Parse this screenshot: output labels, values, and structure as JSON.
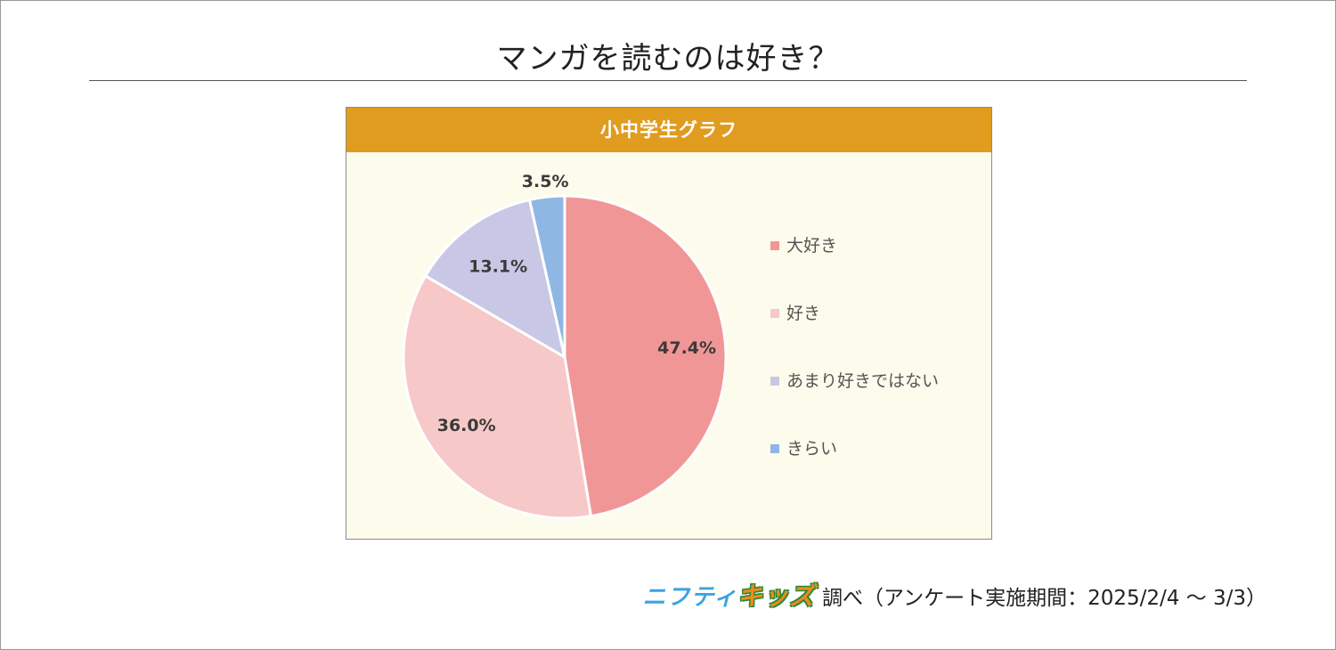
{
  "page_title": "マンガを読むのは好き？",
  "footer": {
    "brand_nifty": "ニフティ",
    "brand_kids": "キッズ",
    "note": "調べ（アンケート実施期間：2025/2/4 ～ 3/3）"
  },
  "chart_data": {
    "type": "pie",
    "title": "小中学生グラフ",
    "slices": [
      {
        "label": "大好き",
        "value": 47.4,
        "display": "47.4%",
        "color": "#f19697"
      },
      {
        "label": "好き",
        "value": 36.0,
        "display": "36.0%",
        "color": "#f7c8c8"
      },
      {
        "label": "あまり好きではない",
        "value": 13.1,
        "display": "13.1%",
        "color": "#c8c8e6"
      },
      {
        "label": "きらい",
        "value": 3.5,
        "display": "3.5%",
        "color": "#8fb7e3"
      }
    ],
    "legend_position": "right",
    "start_angle": "12 o'clock",
    "direction": "clockwise"
  }
}
